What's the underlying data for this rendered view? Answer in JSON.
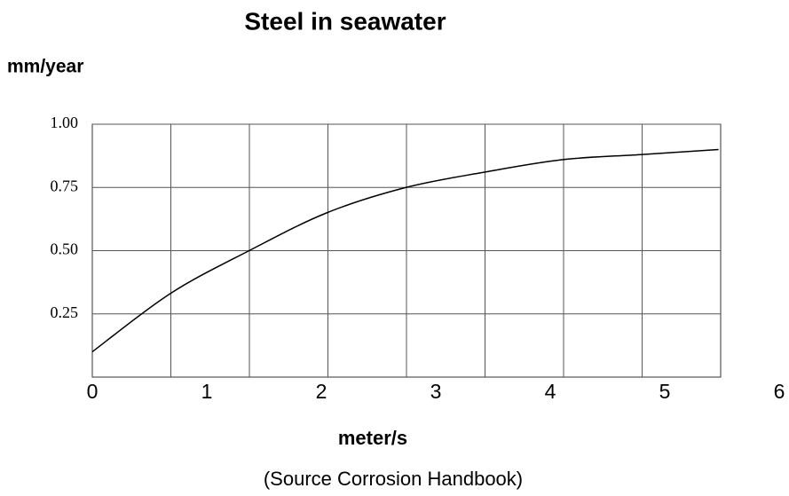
{
  "chart_data": {
    "type": "line",
    "title": "Steel in seawater",
    "y_label": "mm/year",
    "x_label": "meter/s",
    "annotation": "(Source Corrosion Handbook)",
    "x": [
      0,
      0.68,
      1.37,
      2.05,
      2.74,
      3.42,
      4.11,
      4.79,
      5.47
    ],
    "series": [
      {
        "name": "Steel",
        "color": "#000000",
        "values": [
          0.1,
          0.33,
          0.5,
          0.65,
          0.75,
          0.81,
          0.86,
          0.88,
          0.9
        ]
      }
    ],
    "xlim": [
      0,
      6
    ],
    "xticks": [
      0,
      1,
      2,
      3,
      4,
      5,
      6
    ],
    "ylim": [
      0,
      1
    ],
    "yticks": [
      {
        "value": 0.25,
        "label": "0.25"
      },
      {
        "value": 0.5,
        "label": "0.50"
      },
      {
        "value": 0.75,
        "label": "0.75"
      },
      {
        "value": 1,
        "label": "1.00"
      }
    ],
    "grid": true
  }
}
